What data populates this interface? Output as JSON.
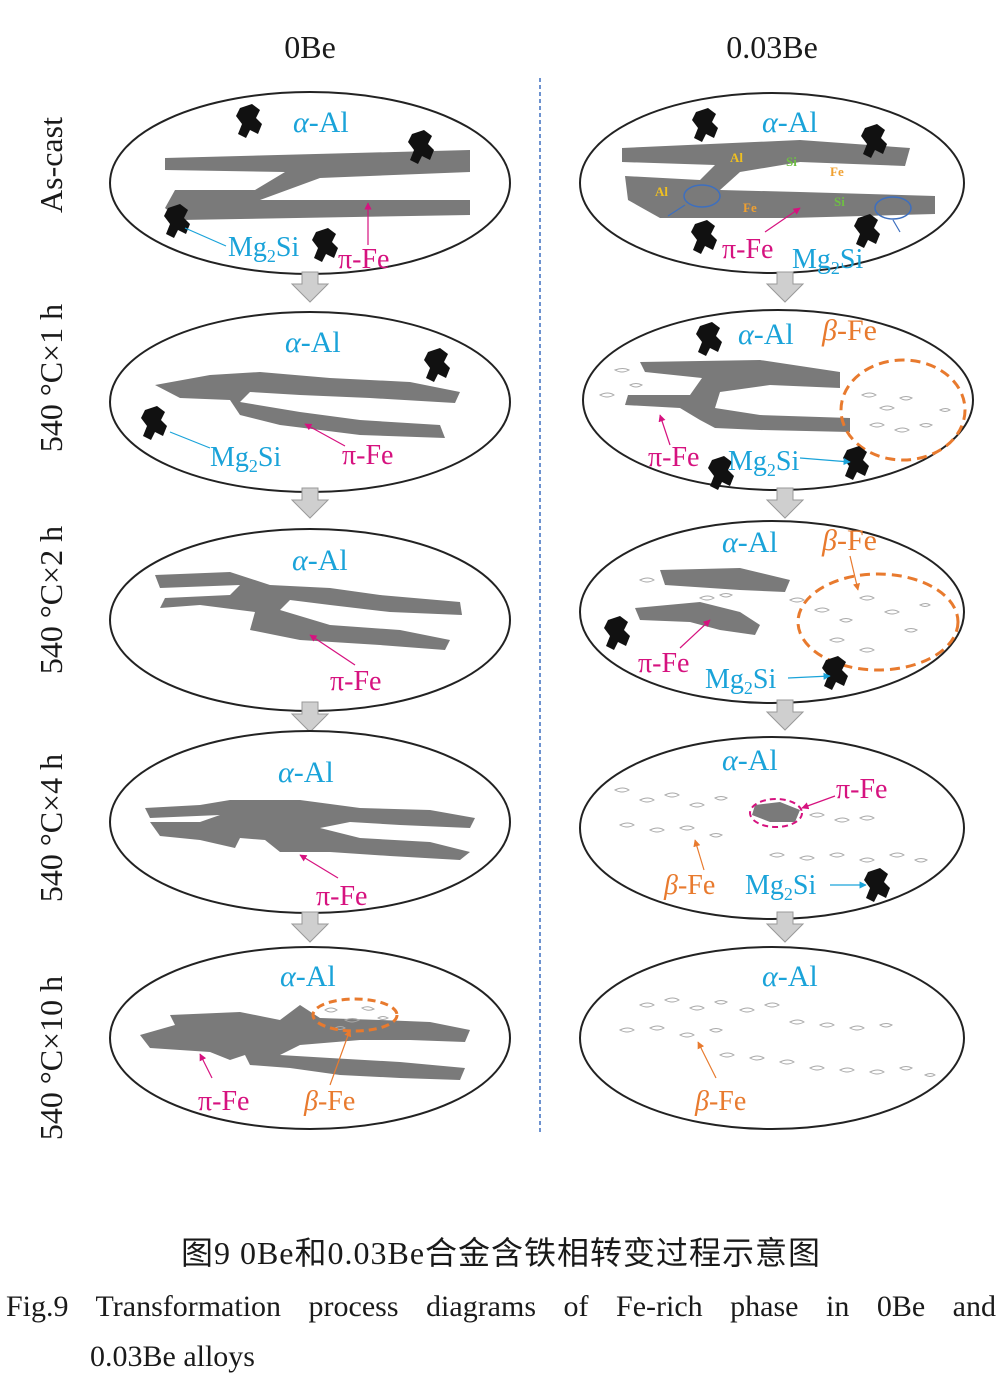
{
  "columns": {
    "left": "0Be",
    "right": "0.03Be"
  },
  "stages": [
    "As-cast",
    "540 °C×1 h",
    "540 °C×2 h",
    "540 °C×4 h",
    "540 °C×10 h"
  ],
  "labels": {
    "alpha_sym": "α",
    "alpha_rest": "-Al",
    "pi_fe": "π-Fe",
    "beta_sym": "β",
    "beta_rest": "-Fe",
    "mg": "Mg",
    "mg_sub": "2",
    "si": "Si",
    "elem_al": "Al",
    "elem_si": "Si",
    "elem_fe": "Fe"
  },
  "colors": {
    "alpha": "#1aa3d9",
    "pi": "#d6127f",
    "beta": "#e87a2e",
    "elem_green": "#6fbf44",
    "phase_gray": "#7a7a7a",
    "divider": "#3d6fbf"
  },
  "caption": {
    "cn": "图9  0Be和0.03Be合金含铁相转变过程示意图",
    "en_line1": "Fig.9  Transformation process diagrams of Fe-rich phase in 0Be and",
    "en_line2": "0.03Be alloys"
  }
}
